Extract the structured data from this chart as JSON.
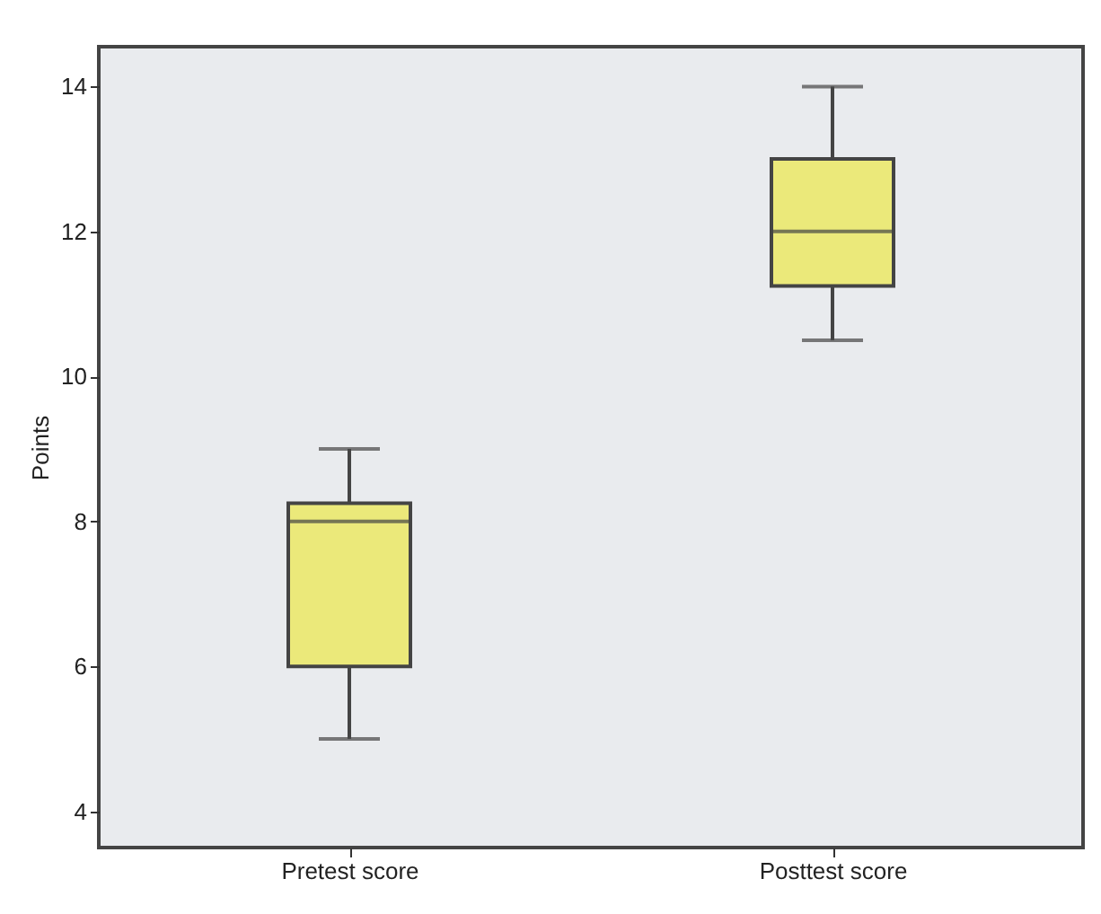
{
  "chart_data": {
    "type": "box",
    "ylabel": "Points",
    "categories": [
      "Pretest score",
      "Posttest score"
    ],
    "boxes": [
      {
        "low": 5,
        "q1": 6,
        "median": 8,
        "q3": 8.25,
        "high": 9
      },
      {
        "low": 10.5,
        "q1": 11.25,
        "median": 12,
        "q3": 13,
        "high": 14
      }
    ],
    "color": "#ebe97a",
    "ylim": [
      3.5,
      14.55
    ],
    "yticks": [
      4,
      6,
      8,
      10,
      12,
      14
    ],
    "grid": false
  }
}
